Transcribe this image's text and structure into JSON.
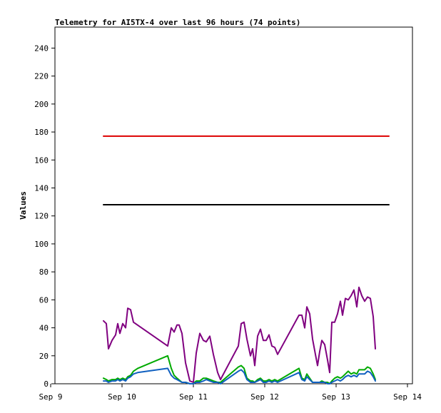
{
  "chart_data": {
    "type": "line",
    "title": "Telemetry for AI5TX-4 over last 96 hours (74 points)",
    "xlabel": "",
    "ylabel": "Values",
    "ylim": [
      0,
      255
    ],
    "xlim": [
      0,
      5
    ],
    "x_ticks": [
      {
        "v": 0,
        "label": "Sep 9"
      },
      {
        "v": 1,
        "label": "Sep 10"
      },
      {
        "v": 2,
        "label": "Sep 11"
      },
      {
        "v": 3,
        "label": "Sep 12"
      },
      {
        "v": 4,
        "label": "Sep 13"
      },
      {
        "v": 5,
        "label": "Sep 14"
      }
    ],
    "y_ticks": [
      0,
      20,
      40,
      60,
      80,
      100,
      120,
      140,
      160,
      180,
      200,
      220,
      240
    ],
    "grid": false,
    "legend": "none",
    "series": [
      {
        "color": "#dd0000",
        "points": [
          [
            0.74,
            177
          ],
          [
            4.74,
            177
          ]
        ]
      },
      {
        "color": "#000000",
        "points": [
          [
            0.74,
            128
          ],
          [
            4.74,
            128
          ]
        ]
      },
      {
        "color": "#800080",
        "points": [
          [
            0.74,
            45
          ],
          [
            0.78,
            43
          ],
          [
            0.81,
            25
          ],
          [
            0.86,
            31
          ],
          [
            0.91,
            35
          ],
          [
            0.94,
            43
          ],
          [
            0.97,
            36
          ],
          [
            1.01,
            43
          ],
          [
            1.05,
            40
          ],
          [
            1.08,
            54
          ],
          [
            1.12,
            53
          ],
          [
            1.16,
            44
          ],
          [
            1.64,
            27
          ],
          [
            1.69,
            40
          ],
          [
            1.73,
            37
          ],
          [
            1.77,
            42
          ],
          [
            1.8,
            42
          ],
          [
            1.84,
            36
          ],
          [
            1.89,
            15
          ],
          [
            1.95,
            2
          ],
          [
            2.0,
            1
          ],
          [
            2.04,
            22
          ],
          [
            2.09,
            36
          ],
          [
            2.14,
            31
          ],
          [
            2.18,
            30
          ],
          [
            2.23,
            34
          ],
          [
            2.28,
            21
          ],
          [
            2.34,
            8
          ],
          [
            2.38,
            3
          ],
          [
            2.63,
            27
          ],
          [
            2.67,
            43
          ],
          [
            2.71,
            44
          ],
          [
            2.75,
            32
          ],
          [
            2.8,
            20
          ],
          [
            2.83,
            25
          ],
          [
            2.86,
            13
          ],
          [
            2.9,
            34
          ],
          [
            2.94,
            39
          ],
          [
            2.98,
            31
          ],
          [
            3.02,
            31
          ],
          [
            3.06,
            35
          ],
          [
            3.1,
            27
          ],
          [
            3.14,
            26
          ],
          [
            3.18,
            21
          ],
          [
            3.48,
            49
          ],
          [
            3.52,
            49
          ],
          [
            3.56,
            40
          ],
          [
            3.59,
            55
          ],
          [
            3.63,
            50
          ],
          [
            3.67,
            32
          ],
          [
            3.71,
            21
          ],
          [
            3.74,
            13
          ],
          [
            3.77,
            23
          ],
          [
            3.8,
            31
          ],
          [
            3.84,
            28
          ],
          [
            3.88,
            17
          ],
          [
            3.91,
            8
          ],
          [
            3.94,
            44
          ],
          [
            3.98,
            44
          ],
          [
            4.02,
            50
          ],
          [
            4.06,
            59
          ],
          [
            4.09,
            49
          ],
          [
            4.13,
            61
          ],
          [
            4.17,
            60
          ],
          [
            4.21,
            63
          ],
          [
            4.25,
            67
          ],
          [
            4.29,
            55
          ],
          [
            4.32,
            69
          ],
          [
            4.36,
            63
          ],
          [
            4.4,
            59
          ],
          [
            4.44,
            62
          ],
          [
            4.48,
            61
          ],
          [
            4.52,
            48
          ],
          [
            4.55,
            25
          ]
        ]
      },
      {
        "color": "#00aa00",
        "points": [
          [
            0.74,
            4
          ],
          [
            0.78,
            3
          ],
          [
            0.81,
            2
          ],
          [
            0.86,
            3
          ],
          [
            0.91,
            3
          ],
          [
            0.94,
            4
          ],
          [
            0.97,
            3
          ],
          [
            1.01,
            4
          ],
          [
            1.05,
            3
          ],
          [
            1.08,
            5
          ],
          [
            1.12,
            6
          ],
          [
            1.16,
            9
          ],
          [
            1.22,
            11
          ],
          [
            1.64,
            20
          ],
          [
            1.69,
            11
          ],
          [
            1.73,
            6
          ],
          [
            1.77,
            4
          ],
          [
            1.84,
            1
          ],
          [
            1.89,
            1
          ],
          [
            1.95,
            0
          ],
          [
            2.0,
            0
          ],
          [
            2.04,
            2
          ],
          [
            2.09,
            2
          ],
          [
            2.14,
            4
          ],
          [
            2.18,
            4
          ],
          [
            2.23,
            3
          ],
          [
            2.28,
            2
          ],
          [
            2.34,
            1
          ],
          [
            2.38,
            1
          ],
          [
            2.63,
            12
          ],
          [
            2.67,
            13
          ],
          [
            2.71,
            11
          ],
          [
            2.75,
            4
          ],
          [
            2.8,
            2
          ],
          [
            2.83,
            2
          ],
          [
            2.86,
            1
          ],
          [
            2.9,
            3
          ],
          [
            2.94,
            4
          ],
          [
            2.98,
            2
          ],
          [
            3.02,
            2
          ],
          [
            3.06,
            3
          ],
          [
            3.1,
            2
          ],
          [
            3.14,
            3
          ],
          [
            3.18,
            2
          ],
          [
            3.48,
            11
          ],
          [
            3.52,
            4
          ],
          [
            3.56,
            3
          ],
          [
            3.59,
            7
          ],
          [
            3.63,
            4
          ],
          [
            3.67,
            1
          ],
          [
            3.71,
            1
          ],
          [
            3.74,
            1
          ],
          [
            3.77,
            1
          ],
          [
            3.8,
            2
          ],
          [
            3.84,
            1
          ],
          [
            3.88,
            1
          ],
          [
            3.91,
            0
          ],
          [
            3.94,
            2
          ],
          [
            3.98,
            4
          ],
          [
            4.02,
            5
          ],
          [
            4.06,
            4
          ],
          [
            4.09,
            5
          ],
          [
            4.13,
            7
          ],
          [
            4.17,
            9
          ],
          [
            4.21,
            7
          ],
          [
            4.25,
            8
          ],
          [
            4.29,
            7
          ],
          [
            4.32,
            10
          ],
          [
            4.36,
            10
          ],
          [
            4.4,
            10
          ],
          [
            4.44,
            12
          ],
          [
            4.48,
            11
          ],
          [
            4.52,
            7
          ],
          [
            4.55,
            3
          ]
        ]
      },
      {
        "color": "#1060c0",
        "points": [
          [
            0.74,
            2
          ],
          [
            0.78,
            2
          ],
          [
            0.81,
            1
          ],
          [
            0.86,
            2
          ],
          [
            0.91,
            2
          ],
          [
            0.94,
            3
          ],
          [
            0.97,
            2
          ],
          [
            1.01,
            3
          ],
          [
            1.05,
            2
          ],
          [
            1.08,
            4
          ],
          [
            1.12,
            5
          ],
          [
            1.16,
            7
          ],
          [
            1.22,
            8
          ],
          [
            1.64,
            11
          ],
          [
            1.69,
            6
          ],
          [
            1.73,
            4
          ],
          [
            1.77,
            3
          ],
          [
            1.84,
            1
          ],
          [
            1.89,
            1
          ],
          [
            1.95,
            0
          ],
          [
            2.0,
            0
          ],
          [
            2.04,
            1
          ],
          [
            2.09,
            1
          ],
          [
            2.14,
            2
          ],
          [
            2.18,
            3
          ],
          [
            2.23,
            2
          ],
          [
            2.28,
            1
          ],
          [
            2.34,
            1
          ],
          [
            2.38,
            0
          ],
          [
            2.63,
            9
          ],
          [
            2.67,
            10
          ],
          [
            2.71,
            8
          ],
          [
            2.75,
            3
          ],
          [
            2.8,
            1
          ],
          [
            2.83,
            1
          ],
          [
            2.86,
            1
          ],
          [
            2.9,
            2
          ],
          [
            2.94,
            3
          ],
          [
            2.98,
            1
          ],
          [
            3.02,
            1
          ],
          [
            3.06,
            2
          ],
          [
            3.1,
            1
          ],
          [
            3.14,
            2
          ],
          [
            3.18,
            1
          ],
          [
            3.48,
            8
          ],
          [
            3.52,
            3
          ],
          [
            3.56,
            2
          ],
          [
            3.59,
            5
          ],
          [
            3.63,
            3
          ],
          [
            3.67,
            1
          ],
          [
            3.71,
            1
          ],
          [
            3.74,
            1
          ],
          [
            3.77,
            1
          ],
          [
            3.8,
            1
          ],
          [
            3.84,
            1
          ],
          [
            3.88,
            0
          ],
          [
            3.91,
            0
          ],
          [
            3.94,
            1
          ],
          [
            3.98,
            2
          ],
          [
            4.02,
            3
          ],
          [
            4.06,
            2
          ],
          [
            4.09,
            3
          ],
          [
            4.13,
            5
          ],
          [
            4.17,
            6
          ],
          [
            4.21,
            5
          ],
          [
            4.25,
            6
          ],
          [
            4.29,
            5
          ],
          [
            4.32,
            7
          ],
          [
            4.36,
            7
          ],
          [
            4.4,
            7
          ],
          [
            4.44,
            9
          ],
          [
            4.48,
            8
          ],
          [
            4.52,
            5
          ],
          [
            4.55,
            2
          ]
        ]
      }
    ]
  }
}
